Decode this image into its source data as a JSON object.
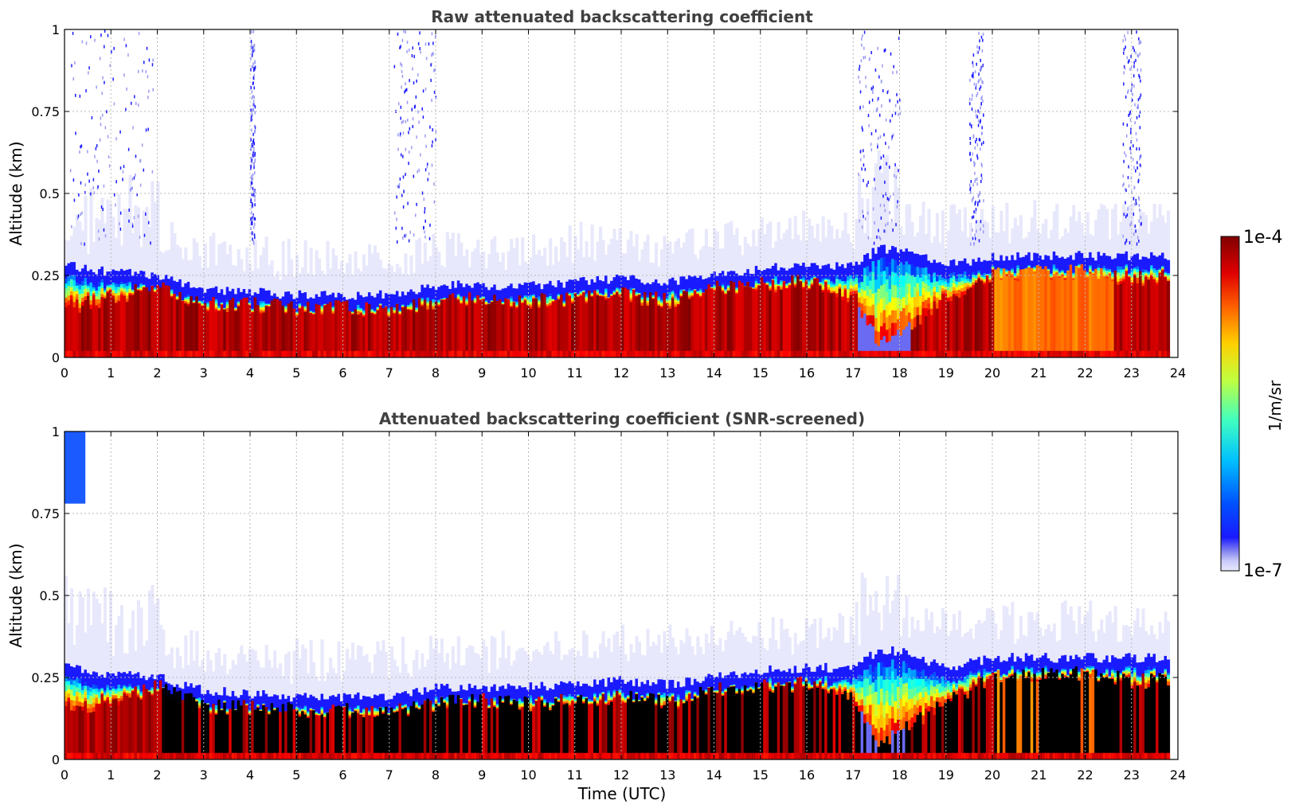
{
  "chart_data": [
    {
      "type": "heatmap",
      "title": "Raw attenuated backscattering coefficient",
      "xlabel": "",
      "ylabel": "Altitude (km)",
      "xlim": [
        0,
        24
      ],
      "ylim": [
        0,
        1
      ],
      "xticks": [
        "0",
        "1",
        "2",
        "3",
        "4",
        "5",
        "6",
        "7",
        "8",
        "9",
        "10",
        "11",
        "12",
        "13",
        "14",
        "15",
        "16",
        "17",
        "18",
        "19",
        "20",
        "21",
        "22",
        "23",
        "24"
      ],
      "yticks": [
        "0",
        "0.25",
        "0.5",
        "0.75",
        "1"
      ],
      "grid": true,
      "layer_top_km": [
        {
          "t": 0.0,
          "top": 0.28,
          "sat": 0.15
        },
        {
          "t": 1.0,
          "top": 0.26,
          "sat": 0.18
        },
        {
          "t": 2.0,
          "top": 0.25,
          "sat": 0.22
        },
        {
          "t": 3.0,
          "top": 0.21,
          "sat": 0.16
        },
        {
          "t": 4.0,
          "top": 0.2,
          "sat": 0.16
        },
        {
          "t": 5.0,
          "top": 0.19,
          "sat": 0.15
        },
        {
          "t": 6.0,
          "top": 0.19,
          "sat": 0.15
        },
        {
          "t": 7.0,
          "top": 0.19,
          "sat": 0.14
        },
        {
          "t": 8.0,
          "top": 0.22,
          "sat": 0.17
        },
        {
          "t": 9.0,
          "top": 0.22,
          "sat": 0.18
        },
        {
          "t": 10.0,
          "top": 0.22,
          "sat": 0.17
        },
        {
          "t": 11.0,
          "top": 0.23,
          "sat": 0.18
        },
        {
          "t": 12.0,
          "top": 0.24,
          "sat": 0.19
        },
        {
          "t": 13.0,
          "top": 0.23,
          "sat": 0.17
        },
        {
          "t": 14.0,
          "top": 0.25,
          "sat": 0.21
        },
        {
          "t": 15.0,
          "top": 0.27,
          "sat": 0.22
        },
        {
          "t": 16.0,
          "top": 0.28,
          "sat": 0.23
        },
        {
          "t": 17.0,
          "top": 0.28,
          "sat": 0.18
        },
        {
          "t": 17.5,
          "top": 0.33,
          "sat": 0.05
        },
        {
          "t": 18.0,
          "top": 0.33,
          "sat": 0.08
        },
        {
          "t": 19.0,
          "top": 0.28,
          "sat": 0.18
        },
        {
          "t": 20.0,
          "top": 0.31,
          "sat": 0.25
        },
        {
          "t": 21.0,
          "top": 0.31,
          "sat": 0.26
        },
        {
          "t": 22.0,
          "top": 0.31,
          "sat": 0.26
        },
        {
          "t": 23.0,
          "top": 0.31,
          "sat": 0.24
        },
        {
          "t": 23.8,
          "top": 0.31,
          "sat": 0.24
        }
      ]
    },
    {
      "type": "heatmap",
      "title": "Attenuated backscattering coefficient (SNR-screened)",
      "xlabel": "Time (UTC)",
      "ylabel": "Altitude (km)",
      "xlim": [
        0,
        24
      ],
      "ylim": [
        0,
        1
      ],
      "xticks": [
        "0",
        "1",
        "2",
        "3",
        "4",
        "5",
        "6",
        "7",
        "8",
        "9",
        "10",
        "11",
        "12",
        "13",
        "14",
        "15",
        "16",
        "17",
        "18",
        "19",
        "20",
        "21",
        "22",
        "23",
        "24"
      ],
      "yticks": [
        "0",
        "0.25",
        "0.5",
        "0.75",
        "1"
      ],
      "grid": true,
      "screened_fill_color": "#000000"
    }
  ],
  "colorbar": {
    "label": "1/m/sr",
    "max_label": "1e-4",
    "min_label": "1e-7",
    "scale": "log",
    "colormap": "jet",
    "low_colors": [
      "#e8e8fc",
      "#c8c8f8",
      "#9a9af4",
      "#5a5af0"
    ]
  }
}
